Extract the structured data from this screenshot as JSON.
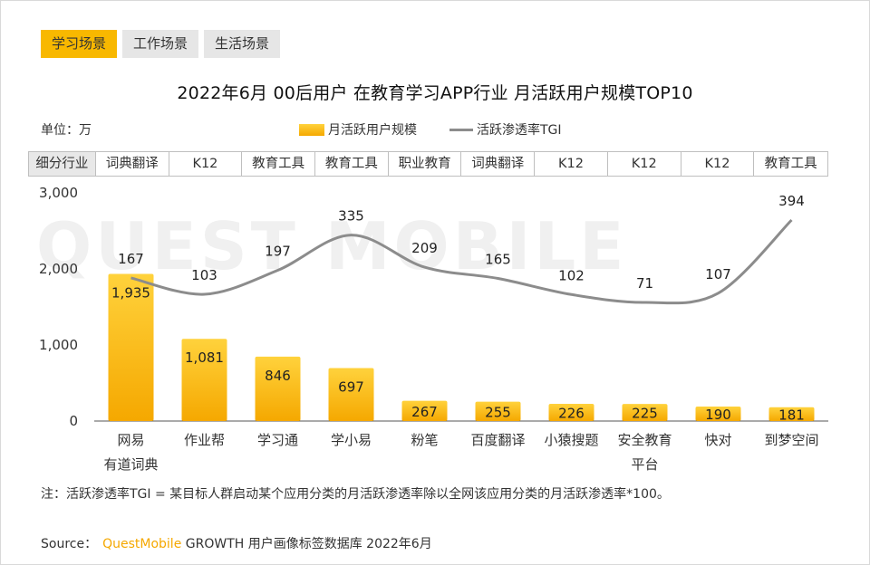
{
  "tabs": [
    {
      "label": "学习场景",
      "active": true
    },
    {
      "label": "工作场景",
      "active": false
    },
    {
      "label": "生活场景",
      "active": false
    }
  ],
  "title": "2022年6月 00后用户 在教育学习APP行业 月活跃用户规模TOP10",
  "unit": "单位：万",
  "legend": {
    "bar": "月活跃用户规模",
    "line": "活跃渗透率TGI"
  },
  "segment_header": "细分行业",
  "segments": [
    "词典翻译",
    "K12",
    "教育工具",
    "教育工具",
    "职业教育",
    "词典翻译",
    "K12",
    "K12",
    "K12",
    "教育工具"
  ],
  "watermark": "QUEST MOBILE",
  "note": "注：活跃渗透率TGI = 某目标人群启动某个应用分类的月活跃渗透率除以全网该应用分类的月活跃渗透率*100。",
  "source": {
    "prefix": "Source：",
    "brand": "QuestMobile",
    "rest": " GROWTH 用户画像标签数据库 2022年6月"
  },
  "colors": {
    "bar_top": "#ffd23c",
    "bar_bottom": "#f5a800",
    "line": "#8c8c8c",
    "tab_active": "#f8b800"
  },
  "chart_data": {
    "type": "bar",
    "categories": [
      "网易有道词典",
      "作业帮",
      "学习通",
      "学小易",
      "粉笔",
      "百度翻译",
      "小猿搜题",
      "安全教育平台",
      "快对",
      "到梦空间"
    ],
    "category_lines": [
      [
        "网易",
        "有道词典"
      ],
      [
        "作业帮"
      ],
      [
        "学习通"
      ],
      [
        "学小易"
      ],
      [
        "粉笔"
      ],
      [
        "百度翻译"
      ],
      [
        "小猿搜题"
      ],
      [
        "安全教育",
        "平台"
      ],
      [
        "快对"
      ],
      [
        "到梦空间"
      ]
    ],
    "series": [
      {
        "name": "月活跃用户规模",
        "type": "bar",
        "values": [
          1935,
          1081,
          846,
          697,
          267,
          255,
          226,
          225,
          190,
          181
        ],
        "labels": [
          "1,935",
          "1,081",
          "846",
          "697",
          "267",
          "255",
          "226",
          "225",
          "190",
          "181"
        ]
      },
      {
        "name": "活跃渗透率TGI",
        "type": "line",
        "values": [
          167,
          103,
          197,
          335,
          209,
          165,
          102,
          71,
          107,
          394
        ]
      }
    ],
    "yticks": [
      "3,000",
      "2,000",
      "1,000",
      "0"
    ],
    "ylim": [
      0,
      3000
    ]
  }
}
